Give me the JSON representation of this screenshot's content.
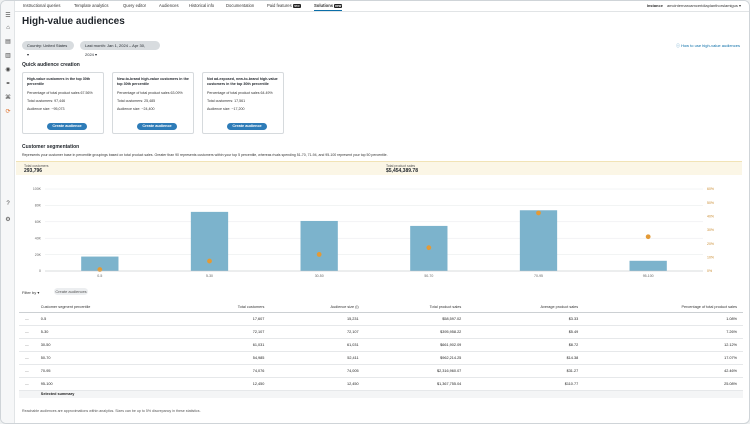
{
  "nav": {
    "tabs": [
      "Instructional queries",
      "Template analytics",
      "Query editor",
      "Audiences",
      "Historical info",
      "Documentation",
      "Paid features",
      "Solutions"
    ],
    "paid_badge": "new",
    "solutions_badge": "new",
    "instance_label": "Instance",
    "instance_value": "amcinternaroamceridiaplanthorslamigus"
  },
  "page": {
    "title": "High-value audiences",
    "country_filter": "Country: United States",
    "date_filter": "Last month: Jan 1, 2024 – Apr 30, 2024",
    "howto_link": "How to use high-value audiences"
  },
  "quick_creation": {
    "heading": "Quick audience creation",
    "cards": [
      {
        "title": "High-value customers in the top 30th percentile",
        "line1": "Percentage of total product sales 67.56%",
        "line2": "Total customers: 97,446",
        "line3": "Audience size: ~95,073",
        "button": "Create audience"
      },
      {
        "title": "New-to-brand high-value customers in the top 30th percentile",
        "line1": "Percentage of total product sales 63.09%",
        "line2": "Total customers: 25,485",
        "line3": "Audience size: ~24,400",
        "button": "Create audience"
      },
      {
        "title": "Not ad-exposed, new-to-brand high-value customers in the top 30th percentile",
        "line1": "Percentage of total product sales 64.49%",
        "line2": "Total customers: 17,561",
        "line3": "Audience size: ~17,200",
        "button": "Create audience"
      }
    ]
  },
  "segmentation": {
    "heading": "Customer segmentation",
    "description": "Represents your customer base in percentile groupings based on total product sales. Greater than 90 represents customers within your top 5 percentile, whereas rivals spending 51-70, 71-94, and 95-100 represent your top 50 percentile.",
    "total_customers_label": "Total customers",
    "total_customers_value": "293,796",
    "total_sales_label": "Total product sales",
    "total_sales_value": "$5,454,389.78"
  },
  "chart_data": {
    "type": "bar",
    "categories": [
      "0-5",
      "5-30",
      "30-50",
      "50-70",
      "70-95",
      "95-100"
    ],
    "values": [
      17607,
      72107,
      61031,
      54985,
      74076,
      12450
    ],
    "line_values": [
      1.08,
      7.26,
      12.12,
      17.07,
      42.46,
      25.08
    ],
    "ylim": [
      0,
      100000
    ],
    "y2lim": [
      0,
      60
    ],
    "y_ticks": [
      "0",
      "20K",
      "40K",
      "60K",
      "80K",
      "100K"
    ],
    "y2_ticks": [
      "0%",
      "10%",
      "20%",
      "30%",
      "40%",
      "50%",
      "60%"
    ],
    "bar_color": "#7cb3cc",
    "point_color": "#e39a36",
    "grid": true
  },
  "table": {
    "filter_label": "Filter by",
    "filter_button": "Create audiences",
    "headers": [
      "Customer segment percentile",
      "Total customers",
      "Audience size (i)",
      "Total product sales",
      "Average product sales",
      "Percentage of total product sales"
    ],
    "rows": [
      [
        "0-5",
        "17,607",
        "15,231",
        "$58,597.02",
        "$3.33",
        "1.08%"
      ],
      [
        "5-30",
        "72,107",
        "72,107",
        "$395,958.22",
        "$5.49",
        "7.26%"
      ],
      [
        "30-50",
        "61,031",
        "61,031",
        "$661,902.09",
        "$8.72",
        "12.12%"
      ],
      [
        "50-70",
        "54,985",
        "52,411",
        "$962,214.25",
        "$14.38",
        "17.07%"
      ],
      [
        "70-95",
        "74,076",
        "74,005",
        "$2,316,960.07",
        "$31.27",
        "42.46%"
      ],
      [
        "95-100",
        "12,450",
        "12,450",
        "$1,367,755.04",
        "$110.77",
        "25.08%"
      ]
    ],
    "summary_label": "Selected summary",
    "footnote": "Reachable audiences are approximations within analytics. Sizes can be up to 5% discrepancy in these statistics."
  }
}
